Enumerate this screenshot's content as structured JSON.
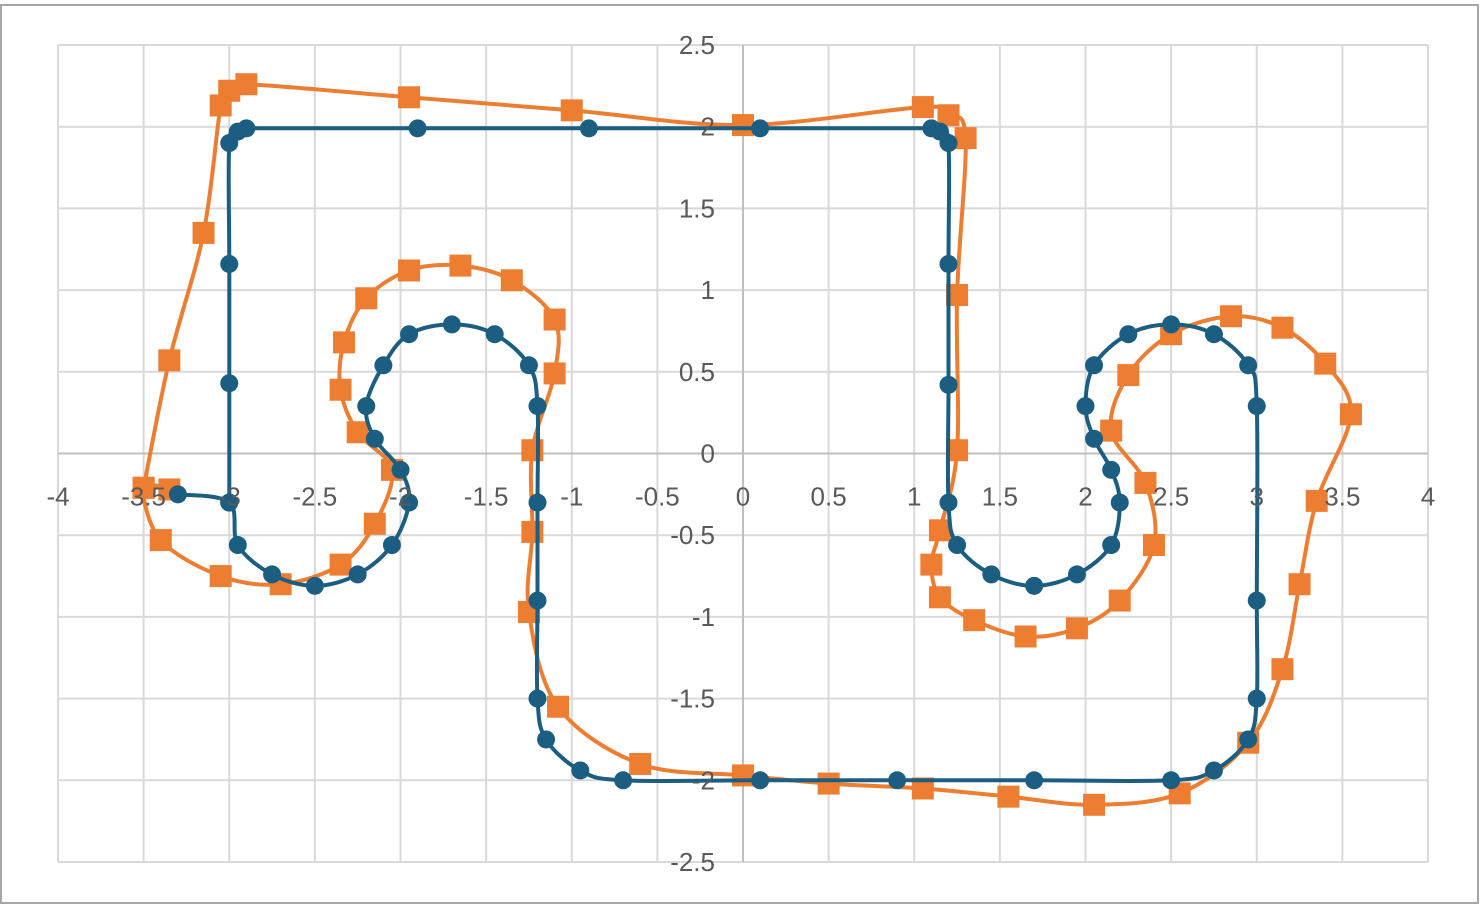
{
  "chart_data": {
    "type": "scatter",
    "title": "",
    "xlabel": "",
    "ylabel": "",
    "xlim": [
      -4,
      4
    ],
    "ylim": [
      -2.5,
      2.5
    ],
    "x_ticks": [
      "-4",
      "-3.5",
      "-3",
      "-2.5",
      "-2",
      "-1.5",
      "-1",
      "-0.5",
      "0",
      "0.5",
      "1",
      "1.5",
      "2",
      "2.5",
      "3",
      "3.5",
      "4"
    ],
    "y_ticks": [
      "2.5",
      "2",
      "1.5",
      "1",
      "0.5",
      "0",
      "-0.5",
      "-1",
      "-1.5",
      "-2",
      "-2.5"
    ],
    "grid": true,
    "smooth": true,
    "legend": "none",
    "series": [
      {
        "marker": "circle",
        "color": "#1b5e82",
        "points": [
          [
            -3.3,
            -0.25
          ],
          [
            -3.0,
            -0.3
          ],
          [
            -2.95,
            -0.56
          ],
          [
            -2.75,
            -0.74
          ],
          [
            -2.5,
            -0.81
          ],
          [
            -2.25,
            -0.74
          ],
          [
            -2.05,
            -0.56
          ],
          [
            -1.95,
            -0.3
          ],
          [
            -2.0,
            -0.1
          ],
          [
            -2.15,
            0.09
          ],
          [
            -2.2,
            0.29
          ],
          [
            -2.1,
            0.54
          ],
          [
            -1.95,
            0.73
          ],
          [
            -1.7,
            0.79
          ],
          [
            -1.45,
            0.73
          ],
          [
            -1.25,
            0.54
          ],
          [
            -1.2,
            0.29
          ],
          [
            -1.2,
            -0.3
          ],
          [
            -1.2,
            -0.9
          ],
          [
            -1.2,
            -1.5
          ],
          [
            -1.15,
            -1.75
          ],
          [
            -0.95,
            -1.94
          ],
          [
            -0.7,
            -2.0
          ],
          [
            0.1,
            -2.0
          ],
          [
            0.9,
            -2.0
          ],
          [
            1.7,
            -2.0
          ],
          [
            2.5,
            -2.0
          ],
          [
            2.75,
            -1.94
          ],
          [
            2.95,
            -1.75
          ],
          [
            3.0,
            -1.5
          ],
          [
            3.0,
            -0.9
          ],
          [
            3.0,
            0.29
          ],
          [
            2.95,
            0.54
          ],
          [
            2.75,
            0.73
          ],
          [
            2.5,
            0.79
          ],
          [
            2.25,
            0.73
          ],
          [
            2.05,
            0.54
          ],
          [
            2.0,
            0.29
          ],
          [
            2.05,
            0.09
          ],
          [
            2.15,
            -0.1
          ],
          [
            2.2,
            -0.3
          ],
          [
            2.15,
            -0.56
          ],
          [
            1.95,
            -0.74
          ],
          [
            1.7,
            -0.81
          ],
          [
            1.45,
            -0.74
          ],
          [
            1.25,
            -0.56
          ],
          [
            1.2,
            -0.3
          ],
          [
            1.2,
            0.42
          ],
          [
            1.2,
            1.16
          ],
          [
            1.2,
            1.9
          ],
          [
            1.15,
            1.97
          ],
          [
            1.1,
            1.99
          ],
          [
            0.1,
            1.99
          ],
          [
            -0.9,
            1.99
          ],
          [
            -1.9,
            1.99
          ],
          [
            -2.9,
            1.99
          ],
          [
            -2.95,
            1.97
          ],
          [
            -3.0,
            1.9
          ],
          [
            -3.0,
            1.16
          ],
          [
            -3.0,
            0.43
          ],
          [
            -3.0,
            -0.3
          ]
        ]
      },
      {
        "marker": "square",
        "color": "#ed7d31",
        "points": [
          [
            -3.35,
            -0.22
          ],
          [
            -3.5,
            -0.21
          ],
          [
            -3.4,
            -0.53
          ],
          [
            -3.05,
            -0.75
          ],
          [
            -2.7,
            -0.8
          ],
          [
            -2.35,
            -0.68
          ],
          [
            -2.15,
            -0.43
          ],
          [
            -2.05,
            -0.1
          ],
          [
            -2.25,
            0.13
          ],
          [
            -2.35,
            0.39
          ],
          [
            -2.33,
            0.68
          ],
          [
            -2.2,
            0.95
          ],
          [
            -1.95,
            1.12
          ],
          [
            -1.65,
            1.15
          ],
          [
            -1.35,
            1.06
          ],
          [
            -1.1,
            0.82
          ],
          [
            -1.1,
            0.49
          ],
          [
            -1.23,
            0.02
          ],
          [
            -1.23,
            -0.48
          ],
          [
            -1.25,
            -0.97
          ],
          [
            -1.08,
            -1.55
          ],
          [
            -0.6,
            -1.9
          ],
          [
            0.0,
            -1.97
          ],
          [
            0.5,
            -2.02
          ],
          [
            1.05,
            -2.05
          ],
          [
            1.55,
            -2.1
          ],
          [
            2.05,
            -2.15
          ],
          [
            2.55,
            -2.08
          ],
          [
            2.95,
            -1.77
          ],
          [
            3.15,
            -1.32
          ],
          [
            3.25,
            -0.8
          ],
          [
            3.35,
            -0.29
          ],
          [
            3.55,
            0.24
          ],
          [
            3.4,
            0.55
          ],
          [
            3.15,
            0.77
          ],
          [
            2.85,
            0.84
          ],
          [
            2.5,
            0.73
          ],
          [
            2.25,
            0.48
          ],
          [
            2.15,
            0.14
          ],
          [
            2.35,
            -0.18
          ],
          [
            2.4,
            -0.56
          ],
          [
            2.2,
            -0.9
          ],
          [
            1.95,
            -1.07
          ],
          [
            1.65,
            -1.12
          ],
          [
            1.35,
            -1.02
          ],
          [
            1.15,
            -0.88
          ],
          [
            1.1,
            -0.68
          ],
          [
            1.15,
            -0.47
          ],
          [
            1.25,
            0.02
          ],
          [
            1.25,
            0.97
          ],
          [
            1.3,
            1.93
          ],
          [
            1.2,
            2.07
          ],
          [
            1.05,
            2.12
          ],
          [
            0.0,
            2.01
          ],
          [
            -1.0,
            2.1
          ],
          [
            -1.95,
            2.18
          ],
          [
            -2.9,
            2.26
          ],
          [
            -3.0,
            2.22
          ],
          [
            -3.05,
            2.13
          ],
          [
            -3.15,
            1.35
          ],
          [
            -3.35,
            0.57
          ],
          [
            -3.5,
            -0.21
          ]
        ]
      }
    ]
  }
}
